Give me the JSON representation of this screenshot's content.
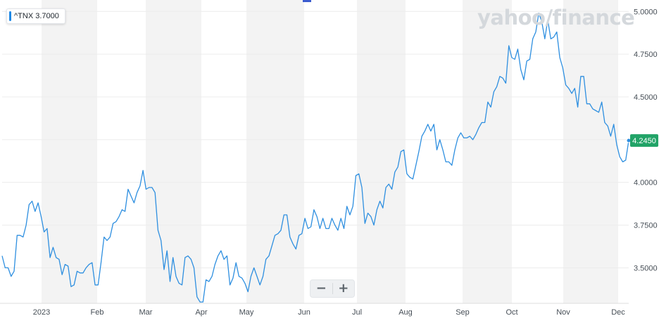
{
  "ticker": {
    "label": "^TNX 3.7000"
  },
  "watermark": {
    "text": "yahoo/finance"
  },
  "zoom": {
    "minus": "−",
    "plus": "+"
  },
  "colors": {
    "line": "#2e8fe0",
    "last_badge": "#21a367",
    "band": "#f3f3f3"
  },
  "chart_data": {
    "type": "line",
    "title": "",
    "series": [
      {
        "values": [
          3.57,
          3.5,
          3.5,
          3.45,
          3.48,
          3.69,
          3.69,
          3.68,
          3.75,
          3.87,
          3.89,
          3.83,
          3.88,
          3.8,
          3.71,
          3.73,
          3.56,
          3.62,
          3.56,
          3.55,
          3.46,
          3.52,
          3.51,
          3.39,
          3.4,
          3.48,
          3.47,
          3.47,
          3.5,
          3.52,
          3.53,
          3.4,
          3.4,
          3.53,
          3.68,
          3.66,
          3.68,
          3.76,
          3.77,
          3.8,
          3.84,
          3.83,
          3.96,
          3.92,
          3.88,
          3.94,
          3.98,
          4.07,
          3.96,
          3.97,
          3.97,
          3.94,
          3.72,
          3.66,
          3.49,
          3.6,
          3.42,
          3.56,
          3.45,
          3.41,
          3.4,
          3.56,
          3.57,
          3.55,
          3.5,
          3.33,
          3.3,
          3.3,
          3.43,
          3.42,
          3.45,
          3.52,
          3.57,
          3.6,
          3.55,
          3.57,
          3.4,
          3.44,
          3.53,
          3.45,
          3.44,
          3.41,
          3.36,
          3.45,
          3.5,
          3.45,
          3.4,
          3.45,
          3.55,
          3.57,
          3.63,
          3.69,
          3.7,
          3.72,
          3.81,
          3.81,
          3.68,
          3.64,
          3.61,
          3.69,
          3.7,
          3.79,
          3.73,
          3.74,
          3.84,
          3.8,
          3.73,
          3.79,
          3.73,
          3.73,
          3.79,
          3.75,
          3.72,
          3.79,
          3.73,
          3.86,
          3.81,
          3.86,
          4.04,
          4.05,
          3.97,
          3.76,
          3.82,
          3.8,
          3.75,
          3.84,
          3.89,
          3.85,
          3.97,
          3.99,
          3.96,
          4.06,
          4.09,
          4.18,
          4.19,
          4.05,
          4.03,
          4.02,
          4.1,
          4.18,
          4.27,
          4.3,
          4.34,
          4.3,
          4.34,
          4.19,
          4.25,
          4.19,
          4.12,
          4.12,
          4.1,
          4.19,
          4.26,
          4.29,
          4.26,
          4.26,
          4.27,
          4.25,
          4.28,
          4.32,
          4.35,
          4.35,
          4.47,
          4.44,
          4.53,
          4.56,
          4.62,
          4.61,
          4.58,
          4.8,
          4.73,
          4.72,
          4.78,
          4.66,
          4.6,
          4.71,
          4.72,
          4.84,
          4.88,
          4.99,
          4.94,
          4.84,
          4.95,
          4.84,
          4.85,
          4.88,
          4.73,
          4.67,
          4.57,
          4.55,
          4.52,
          4.55,
          4.44,
          4.62,
          4.62,
          4.46,
          4.46,
          4.43,
          4.42,
          4.41,
          4.47,
          4.35,
          4.33,
          4.27,
          4.34,
          4.22,
          4.15,
          4.12,
          4.13,
          4.245
        ]
      }
    ],
    "x_tick_labels": [
      "2023",
      "Feb",
      "Mar",
      "Apr",
      "May",
      "Jun",
      "Jul",
      "Aug",
      "Sep",
      "Oct",
      "Nov",
      "Dec"
    ],
    "y_tick_labels": [
      "3.5000",
      "3.7500",
      "4.0000",
      "4.2500",
      "4.5000",
      "4.7500",
      "5.0000"
    ],
    "y_ticks": [
      3.5,
      3.75,
      4.0,
      4.25,
      4.5,
      4.75,
      5.0
    ],
    "ylim": [
      3.28,
      5.03
    ],
    "last_value_label": "4.2450",
    "grid": true
  }
}
